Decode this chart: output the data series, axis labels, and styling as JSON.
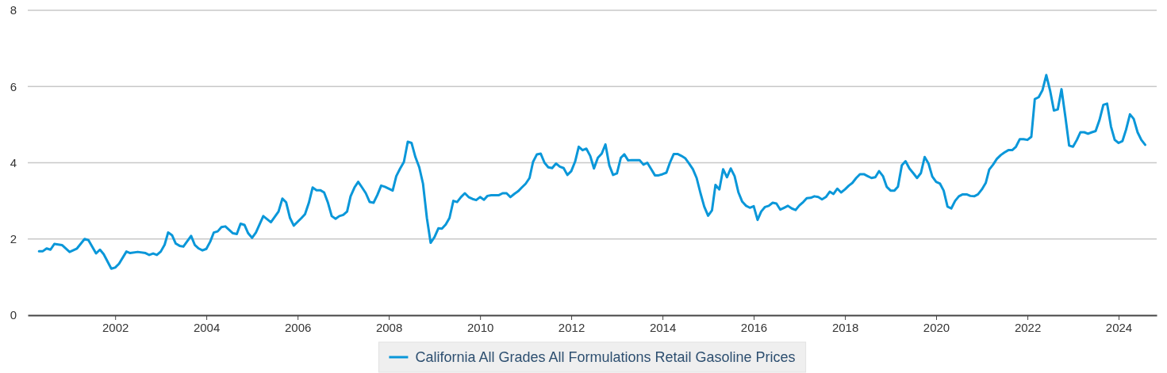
{
  "chart_data": {
    "type": "line",
    "xlim": [
      "2000-02",
      "2024-11"
    ],
    "xticks": [
      "2002",
      "2004",
      "2006",
      "2008",
      "2010",
      "2012",
      "2014",
      "2016",
      "2018",
      "2020",
      "2022",
      "2024"
    ],
    "ylim": [
      0,
      8
    ],
    "yticks": [
      0,
      2,
      4,
      6,
      8
    ],
    "grid": "y",
    "legend": "bottom",
    "marker": "none",
    "line_style": "solid",
    "x": [
      "2000-05",
      "2000-06",
      "2000-07",
      "2000-08",
      "2000-09",
      "2000-11",
      "2001-01",
      "2001-03",
      "2001-05",
      "2001-06",
      "2001-08",
      "2001-09",
      "2001-10",
      "2001-12",
      "2002-01",
      "2002-02",
      "2002-04",
      "2002-05",
      "2002-07",
      "2002-09",
      "2002-10",
      "2002-11",
      "2002-12",
      "2003-01",
      "2003-02",
      "2003-03",
      "2003-04",
      "2003-05",
      "2003-06",
      "2003-07",
      "2003-09",
      "2003-10",
      "2003-11",
      "2003-12",
      "2004-01",
      "2004-02",
      "2004-03",
      "2004-04",
      "2004-05",
      "2004-06",
      "2004-08",
      "2004-09",
      "2004-10",
      "2004-11",
      "2004-12",
      "2005-01",
      "2005-02",
      "2005-04",
      "2005-06",
      "2005-08",
      "2005-09",
      "2005-10",
      "2005-11",
      "2005-12",
      "2006-02",
      "2006-03",
      "2006-04",
      "2006-05",
      "2006-06",
      "2006-07",
      "2006-08",
      "2006-09",
      "2006-10",
      "2006-11",
      "2006-12",
      "2007-01",
      "2007-02",
      "2007-03",
      "2007-04",
      "2007-05",
      "2007-06",
      "2007-07",
      "2007-08",
      "2007-09",
      "2007-10",
      "2007-11",
      "2007-12",
      "2008-02",
      "2008-03",
      "2008-04",
      "2008-05",
      "2008-06",
      "2008-07",
      "2008-08",
      "2008-09",
      "2008-10",
      "2008-11",
      "2008-12",
      "2009-01",
      "2009-02",
      "2009-03",
      "2009-04",
      "2009-05",
      "2009-06",
      "2009-07",
      "2009-08",
      "2009-09",
      "2009-10",
      "2009-11",
      "2009-12",
      "2010-01",
      "2010-02",
      "2010-03",
      "2010-04",
      "2010-06",
      "2010-07",
      "2010-08",
      "2010-09",
      "2010-10",
      "2010-11",
      "2010-12",
      "2011-01",
      "2011-02",
      "2011-03",
      "2011-04",
      "2011-05",
      "2011-06",
      "2011-07",
      "2011-08",
      "2011-09",
      "2011-10",
      "2011-11",
      "2011-12",
      "2012-01",
      "2012-02",
      "2012-03",
      "2012-04",
      "2012-05",
      "2012-06",
      "2012-07",
      "2012-08",
      "2012-09",
      "2012-10",
      "2012-11",
      "2012-12",
      "2013-01",
      "2013-02",
      "2013-03",
      "2013-04",
      "2013-05",
      "2013-07",
      "2013-08",
      "2013-09",
      "2013-10",
      "2013-11",
      "2013-12",
      "2014-01",
      "2014-02",
      "2014-03",
      "2014-04",
      "2014-05",
      "2014-06",
      "2014-07",
      "2014-08",
      "2014-09",
      "2014-10",
      "2014-11",
      "2014-12",
      "2015-01",
      "2015-02",
      "2015-03",
      "2015-04",
      "2015-05",
      "2015-06",
      "2015-07",
      "2015-08",
      "2015-09",
      "2015-10",
      "2015-11",
      "2015-12",
      "2016-01",
      "2016-02",
      "2016-03",
      "2016-04",
      "2016-05",
      "2016-06",
      "2016-07",
      "2016-08",
      "2016-09",
      "2016-10",
      "2016-11",
      "2016-12",
      "2017-01",
      "2017-02",
      "2017-03",
      "2017-04",
      "2017-05",
      "2017-06",
      "2017-07",
      "2017-08",
      "2017-09",
      "2017-10",
      "2017-11",
      "2017-12",
      "2018-01",
      "2018-02",
      "2018-03",
      "2018-04",
      "2018-05",
      "2018-06",
      "2018-07",
      "2018-08",
      "2018-09",
      "2018-10",
      "2018-11",
      "2018-12",
      "2019-01",
      "2019-02",
      "2019-03",
      "2019-04",
      "2019-05",
      "2019-06",
      "2019-07",
      "2019-08",
      "2019-09",
      "2019-10",
      "2019-11",
      "2019-12",
      "2020-01",
      "2020-02",
      "2020-03",
      "2020-04",
      "2020-05",
      "2020-06",
      "2020-07",
      "2020-08",
      "2020-09",
      "2020-10",
      "2020-11",
      "2020-12",
      "2021-01",
      "2021-02",
      "2021-03",
      "2021-04",
      "2021-05",
      "2021-06",
      "2021-07",
      "2021-08",
      "2021-09",
      "2021-10",
      "2021-11",
      "2021-12",
      "2022-01",
      "2022-02",
      "2022-03",
      "2022-04",
      "2022-05",
      "2022-06",
      "2022-07",
      "2022-08",
      "2022-09",
      "2022-10",
      "2022-11",
      "2022-12",
      "2023-01",
      "2023-02",
      "2023-03",
      "2023-04",
      "2023-05",
      "2023-06",
      "2023-07",
      "2023-08",
      "2023-09",
      "2023-10",
      "2023-11",
      "2023-12",
      "2024-01",
      "2024-02",
      "2024-03",
      "2024-04",
      "2024-05",
      "2024-06",
      "2024-07",
      "2024-08"
    ],
    "series": [
      {
        "name": "California All Grades All Formulations Retail Gasoline Prices",
        "color": "#0a97d9",
        "values": [
          1.68,
          1.68,
          1.75,
          1.72,
          1.87,
          1.84,
          1.66,
          1.75,
          2.0,
          1.97,
          1.62,
          1.72,
          1.6,
          1.22,
          1.25,
          1.35,
          1.67,
          1.63,
          1.66,
          1.63,
          1.58,
          1.62,
          1.58,
          1.67,
          1.85,
          2.17,
          2.1,
          1.88,
          1.82,
          1.8,
          2.08,
          1.84,
          1.75,
          1.7,
          1.74,
          1.93,
          2.17,
          2.2,
          2.31,
          2.33,
          2.15,
          2.13,
          2.4,
          2.37,
          2.15,
          2.03,
          2.17,
          2.6,
          2.44,
          2.72,
          3.06,
          2.96,
          2.55,
          2.35,
          2.55,
          2.65,
          2.95,
          3.35,
          3.28,
          3.28,
          3.22,
          2.95,
          2.6,
          2.53,
          2.6,
          2.63,
          2.72,
          3.12,
          3.35,
          3.5,
          3.35,
          3.2,
          2.97,
          2.95,
          3.15,
          3.4,
          3.37,
          3.27,
          3.65,
          3.85,
          4.02,
          4.55,
          4.52,
          4.15,
          3.88,
          3.45,
          2.55,
          1.9,
          2.05,
          2.28,
          2.27,
          2.38,
          2.55,
          3.0,
          2.97,
          3.1,
          3.2,
          3.1,
          3.05,
          3.02,
          3.1,
          3.03,
          3.13,
          3.15,
          3.15,
          3.2,
          3.2,
          3.1,
          3.18,
          3.25,
          3.35,
          3.45,
          3.6,
          4.02,
          4.22,
          4.24,
          4.0,
          3.88,
          3.86,
          3.98,
          3.9,
          3.86,
          3.68,
          3.78,
          4.03,
          4.42,
          4.33,
          4.37,
          4.18,
          3.85,
          4.13,
          4.24,
          4.48,
          3.93,
          3.68,
          3.72,
          4.13,
          4.22,
          4.06,
          4.07,
          4.07,
          3.95,
          4.0,
          3.84,
          3.67,
          3.67,
          3.7,
          3.74,
          4.0,
          4.23,
          4.23,
          4.18,
          4.12,
          3.98,
          3.83,
          3.6,
          3.2,
          2.85,
          2.61,
          2.75,
          3.42,
          3.3,
          3.83,
          3.62,
          3.85,
          3.65,
          3.22,
          2.98,
          2.87,
          2.82,
          2.86,
          2.5,
          2.72,
          2.84,
          2.87,
          2.95,
          2.93,
          2.77,
          2.82,
          2.87,
          2.8,
          2.76,
          2.88,
          2.97,
          3.07,
          3.08,
          3.12,
          3.1,
          3.04,
          3.1,
          3.24,
          3.18,
          3.32,
          3.22,
          3.3,
          3.4,
          3.47,
          3.6,
          3.7,
          3.7,
          3.65,
          3.6,
          3.62,
          3.78,
          3.65,
          3.37,
          3.27,
          3.27,
          3.37,
          3.93,
          4.04,
          3.85,
          3.73,
          3.6,
          3.73,
          4.15,
          3.98,
          3.64,
          3.5,
          3.45,
          3.27,
          2.85,
          2.8,
          3.0,
          3.12,
          3.17,
          3.17,
          3.13,
          3.12,
          3.17,
          3.3,
          3.47,
          3.82,
          3.95,
          4.1,
          4.2,
          4.27,
          4.33,
          4.33,
          4.42,
          4.62,
          4.62,
          4.6,
          4.68,
          5.67,
          5.72,
          5.9,
          6.3,
          5.9,
          5.37,
          5.4,
          5.93,
          5.2,
          4.45,
          4.42,
          4.6,
          4.8,
          4.8,
          4.76,
          4.8,
          4.83,
          5.12,
          5.52,
          5.55,
          4.95,
          4.6,
          4.52,
          4.57,
          4.87,
          5.27,
          5.15,
          4.8,
          4.6,
          4.47
        ]
      }
    ]
  }
}
